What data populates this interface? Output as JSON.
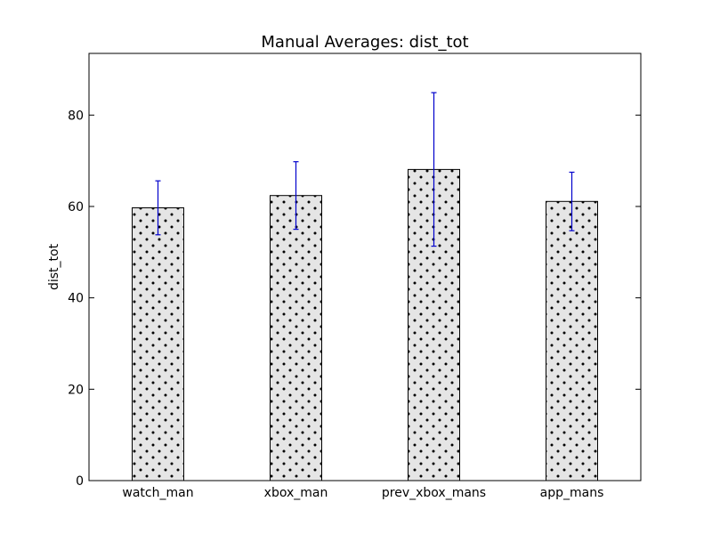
{
  "chart_data": {
    "type": "bar",
    "title": "Manual Averages: dist_tot",
    "xlabel": "",
    "ylabel": "dist_tot",
    "categories": [
      "watch_man",
      "xbox_man",
      "prev_xbox_mans",
      "app_mans"
    ],
    "values": [
      59.7,
      62.4,
      68.1,
      61.1
    ],
    "errors": [
      5.9,
      7.4,
      16.8,
      6.4
    ],
    "ylim": [
      0,
      93.5
    ],
    "yticks": [
      0,
      20,
      40,
      60,
      80
    ],
    "ytick_labels": [
      "0",
      "20",
      "40",
      "60",
      "80"
    ],
    "grid": false,
    "bar_fill": "#e5e5e5",
    "bar_edge": "#000000",
    "bar_hatch": "dots",
    "error_color": "#0000cc"
  }
}
